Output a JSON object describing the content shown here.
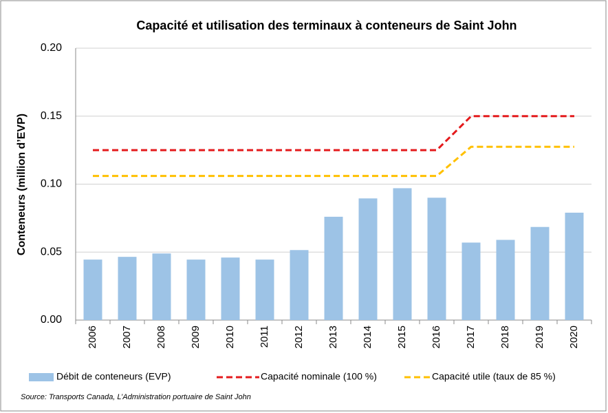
{
  "chart_data": {
    "type": "bar",
    "title": "Capacité et utilisation des terminaux à conteneurs de Saint John",
    "y_label": "Conteneurs (million d’EVP)",
    "source": "Source: Transports Canada, L’Administration portuaire de Saint John",
    "categories": [
      "2006",
      "2007",
      "2008",
      "2009",
      "2010",
      "2011",
      "2012",
      "2013",
      "2014",
      "2015",
      "2016",
      "2017",
      "2018",
      "2019",
      "2020"
    ],
    "series": [
      {
        "name": "Débit de conteneurs (EVP)",
        "type": "bar",
        "color": "#9dc3e6",
        "values": [
          0.0445,
          0.0465,
          0.049,
          0.0445,
          0.046,
          0.0445,
          0.0515,
          0.076,
          0.0895,
          0.097,
          0.09,
          0.057,
          0.059,
          0.0685,
          0.079
        ]
      },
      {
        "name": "Capacité nominale (100 %)",
        "type": "line",
        "dashed": true,
        "color": "#e41a1c",
        "values": [
          0.125,
          0.125,
          0.125,
          0.125,
          0.125,
          0.125,
          0.125,
          0.125,
          0.125,
          0.125,
          0.125,
          0.15,
          0.15,
          0.15,
          0.15
        ]
      },
      {
        "name": "Capacité utile (taux de 85 %)",
        "type": "line",
        "dashed": true,
        "color": "#ffc000",
        "values": [
          0.106,
          0.106,
          0.106,
          0.106,
          0.106,
          0.106,
          0.106,
          0.106,
          0.106,
          0.106,
          0.106,
          0.1275,
          0.1275,
          0.1275,
          0.1275
        ]
      }
    ],
    "ylim": [
      0,
      0.2
    ],
    "yticks": [
      {
        "value": 0,
        "label": "0.00"
      },
      0.05,
      {
        "value": 0.1,
        "label": "0.10"
      },
      0.15,
      {
        "value": 0.2,
        "label": "0.20"
      }
    ],
    "grid": true,
    "legend": "bottom"
  }
}
